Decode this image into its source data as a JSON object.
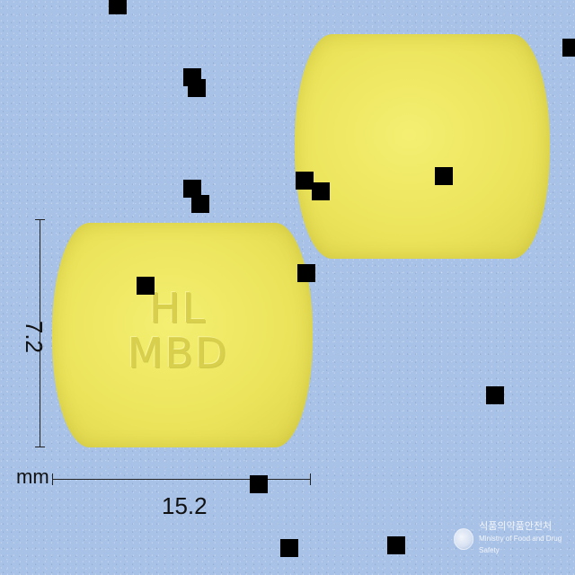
{
  "image": {
    "background_color": "#a8c1e6",
    "pill_color": "#ebe35a",
    "imprint": {
      "line1": "HL",
      "line2": "MBD"
    },
    "dimensions": {
      "height_label": "7.2",
      "width_label": "15.2",
      "unit_label": "mm"
    },
    "watermark": {
      "korean": "식품의약품안전처",
      "english": "Ministry of Food and Drug Safety",
      "icon": "mfds-logo-icon"
    }
  }
}
